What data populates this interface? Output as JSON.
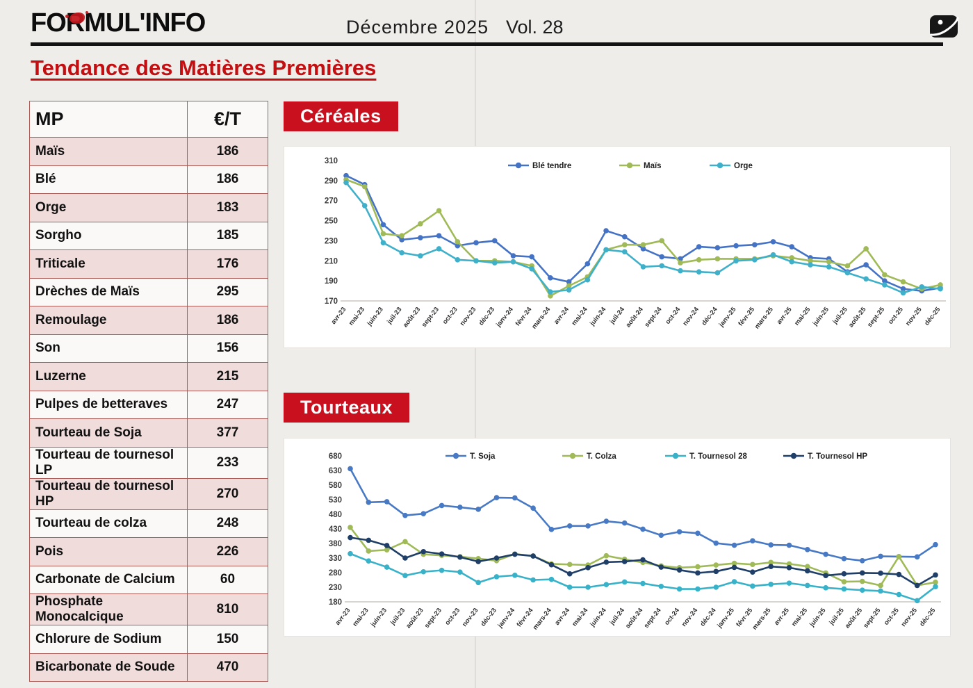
{
  "header": {
    "brand": "FORMUL'INFO",
    "issue": "Décembre 2025",
    "volume": "Vol. 28"
  },
  "page_title": "Tendance des Matières Premières",
  "table": {
    "headers": [
      "MP",
      "€/T"
    ],
    "rows": [
      {
        "mp": "Maïs",
        "price": "186"
      },
      {
        "mp": "Blé",
        "price": "186"
      },
      {
        "mp": "Orge",
        "price": "183"
      },
      {
        "mp": "Sorgho",
        "price": "185"
      },
      {
        "mp": "Triticale",
        "price": "176"
      },
      {
        "mp": "Drèches de Maïs",
        "price": "295"
      },
      {
        "mp": "Remoulage",
        "price": "186"
      },
      {
        "mp": "Son",
        "price": "156"
      },
      {
        "mp": "Luzerne",
        "price": "215"
      },
      {
        "mp": "Pulpes de betteraves",
        "price": "247"
      },
      {
        "mp": "Tourteau de Soja",
        "price": "377"
      },
      {
        "mp": "Tourteau de tournesol LP",
        "price": "233"
      },
      {
        "mp": "Tourteau de tournesol HP",
        "price": "270"
      },
      {
        "mp": "Tourteau de colza",
        "price": "248"
      },
      {
        "mp": "Pois",
        "price": "226"
      },
      {
        "mp": "Carbonate de Calcium",
        "price": "60"
      },
      {
        "mp": "Phosphate Monocalcique",
        "price": "810"
      },
      {
        "mp": "Chlorure de Sodium",
        "price": "150"
      },
      {
        "mp": "Bicarbonate de Soude",
        "price": "470"
      }
    ]
  },
  "sections": {
    "cereales": {
      "label": "Céréales"
    },
    "tourteaux": {
      "label": "Tourteaux"
    }
  },
  "colors": {
    "accent_red": "#c8101e",
    "title_red": "#c40f12",
    "table_border": "#ab5a56",
    "table_row_pink": "#f0dcdb",
    "ble_tendre": "#4472c4",
    "mais": "#9fba56",
    "orge": "#3fb0c9",
    "t_soja": "#4779c4",
    "t_colza": "#9fba56",
    "t_tournesol28": "#37b2c9",
    "t_tournesol_hp": "#1f3f68"
  },
  "chart_data": [
    {
      "type": "line",
      "title": "Céréales",
      "xlabel": "",
      "ylabel": "€/T",
      "ylim": [
        170,
        310
      ],
      "yticks": [
        170,
        190,
        210,
        230,
        250,
        270,
        290,
        310
      ],
      "grid": false,
      "legend_position": "top",
      "categories": [
        "avr-23",
        "mai-23",
        "juin-23",
        "juil-23",
        "août-23",
        "sept-23",
        "oct-23",
        "nov-23",
        "déc-23",
        "janv-24",
        "févr-24",
        "mars-24",
        "avr-24",
        "mai-24",
        "juin-24",
        "juil-24",
        "août-24",
        "sept-24",
        "oct-24",
        "nov-24",
        "déc-24",
        "janv-25",
        "févr-25",
        "mars-25",
        "avr-25",
        "mai-25",
        "juin-25",
        "juil-25",
        "août-25",
        "sept-25",
        "oct-25",
        "nov-25",
        "déc-25"
      ],
      "series": [
        {
          "name": "Blé tendre",
          "color": "#4472c4",
          "values": [
            295,
            286,
            246,
            231,
            233,
            235,
            225,
            228,
            230,
            215,
            214,
            193,
            189,
            207,
            240,
            234,
            222,
            214,
            212,
            224,
            223,
            225,
            226,
            229,
            224,
            213,
            212,
            199,
            206,
            190,
            182,
            180,
            183
          ]
        },
        {
          "name": "Maïs",
          "color": "#9fba56",
          "values": [
            291,
            284,
            237,
            235,
            247,
            260,
            229,
            210,
            210,
            209,
            205,
            175,
            185,
            194,
            221,
            226,
            226,
            230,
            208,
            211,
            212,
            212,
            212,
            215,
            213,
            210,
            209,
            205,
            222,
            196,
            189,
            182,
            186
          ]
        },
        {
          "name": "Orge",
          "color": "#3fb0c9",
          "values": [
            288,
            265,
            228,
            218,
            215,
            222,
            211,
            210,
            208,
            209,
            202,
            179,
            181,
            191,
            221,
            219,
            204,
            205,
            200,
            199,
            198,
            210,
            211,
            216,
            209,
            206,
            204,
            198,
            192,
            186,
            178,
            184,
            182
          ]
        }
      ]
    },
    {
      "type": "line",
      "title": "Tourteaux",
      "xlabel": "",
      "ylabel": "€/T",
      "ylim": [
        180,
        680
      ],
      "yticks": [
        180,
        230,
        280,
        330,
        380,
        430,
        480,
        530,
        580,
        630,
        680
      ],
      "grid": false,
      "legend_position": "top",
      "categories": [
        "avr-23",
        "mai-23",
        "juin-23",
        "juil-23",
        "août-23",
        "sept-23",
        "oct-23",
        "nov-23",
        "déc-23",
        "janv-24",
        "févr-24",
        "mars-24",
        "avr-24",
        "mai-24",
        "juin-24",
        "juil-24",
        "août-24",
        "sept-24",
        "oct-24",
        "nov-24",
        "déc-24",
        "janv-25",
        "févr-25",
        "mars-25",
        "avr-25",
        "mai-25",
        "juin-25",
        "juil-25",
        "août-25",
        "sept-25",
        "oct-25",
        "nov-25",
        "déc-25"
      ],
      "series": [
        {
          "name": "T. Soja",
          "color": "#4779c4",
          "values": [
            636,
            521,
            523,
            476,
            482,
            510,
            504,
            497,
            537,
            536,
            501,
            428,
            440,
            440,
            456,
            450,
            429,
            408,
            420,
            415,
            381,
            374,
            389,
            375,
            374,
            359,
            343,
            328,
            321,
            336,
            335,
            334,
            376
          ]
        },
        {
          "name": "T. Colza",
          "color": "#9fba56",
          "values": [
            435,
            354,
            358,
            386,
            343,
            339,
            335,
            328,
            321,
            344,
            337,
            310,
            308,
            306,
            338,
            326,
            315,
            303,
            297,
            300,
            306,
            312,
            308,
            315,
            310,
            301,
            279,
            249,
            250,
            236,
            335,
            236,
            247
          ]
        },
        {
          "name": "T. Tournesol 28",
          "color": "#37b2c9",
          "values": [
            345,
            320,
            299,
            270,
            283,
            288,
            282,
            246,
            266,
            271,
            255,
            257,
            230,
            230,
            239,
            248,
            243,
            233,
            224,
            224,
            230,
            249,
            234,
            240,
            244,
            236,
            228,
            224,
            220,
            217,
            205,
            184,
            232
          ]
        },
        {
          "name": "T. Tournesol HP",
          "color": "#1f3f68",
          "values": [
            400,
            391,
            373,
            330,
            352,
            344,
            333,
            318,
            330,
            343,
            337,
            307,
            276,
            297,
            316,
            318,
            324,
            299,
            289,
            279,
            284,
            298,
            282,
            301,
            297,
            286,
            270,
            276,
            279,
            278,
            274,
            236,
            272
          ]
        }
      ]
    }
  ]
}
